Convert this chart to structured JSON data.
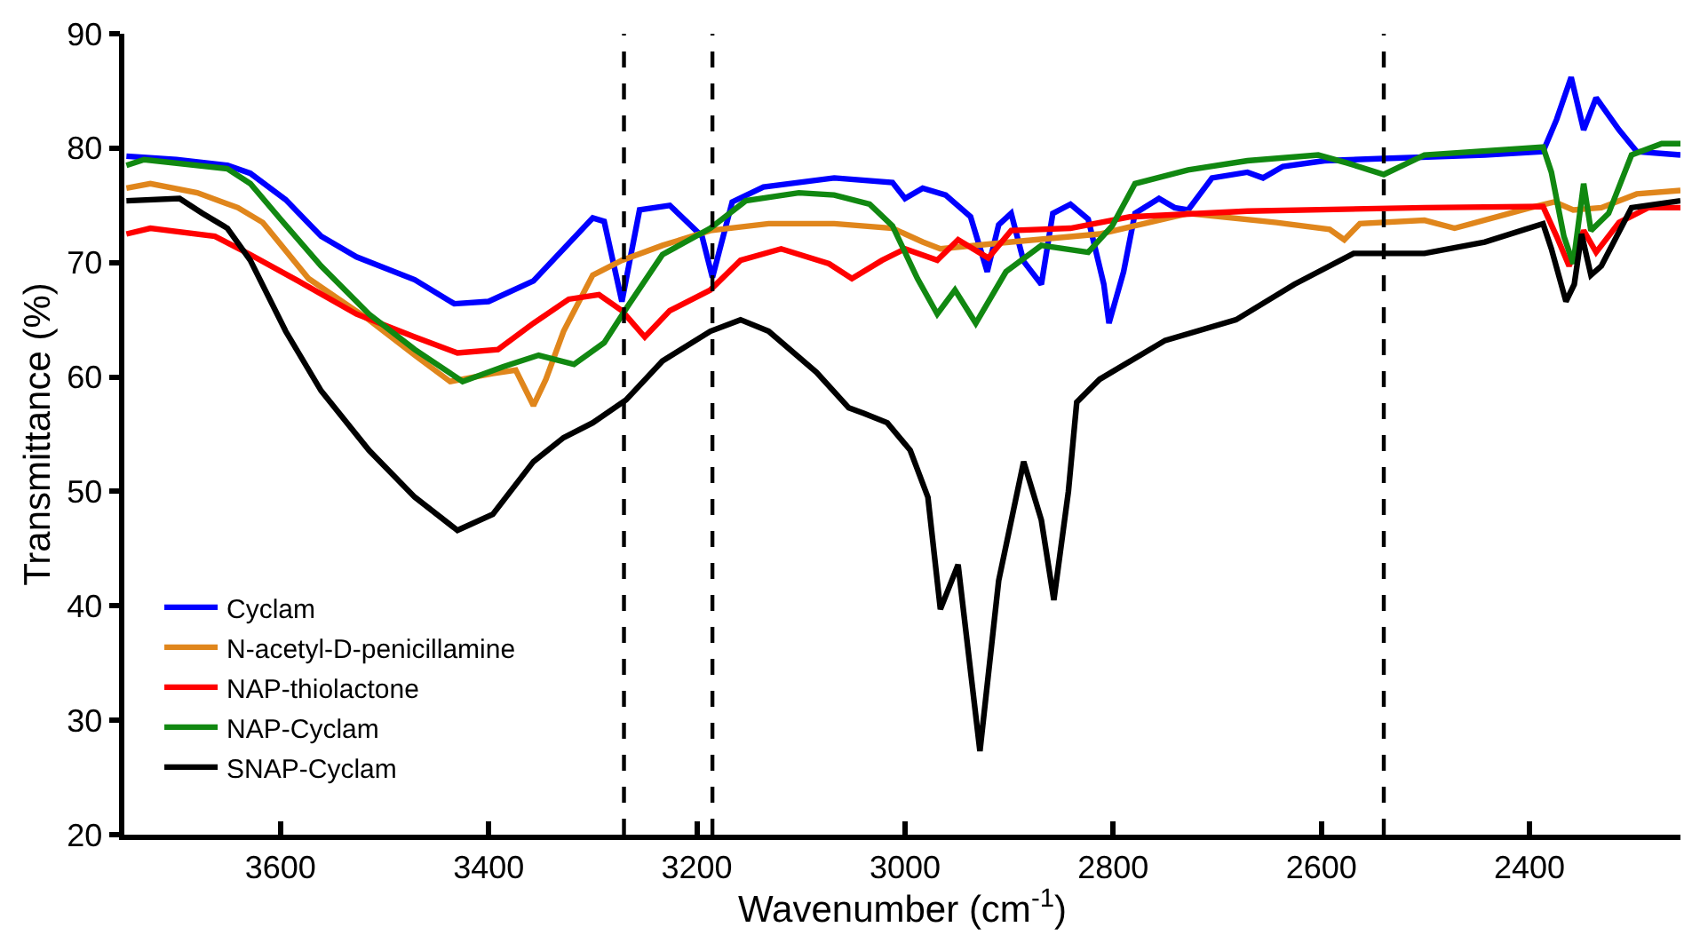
{
  "chart_data": {
    "type": "line",
    "xlabel": "Wavenumber (cm$^{-1}$)",
    "ylabel": "Transmittance (%)",
    "xlim": [
      3750,
      2255
    ],
    "ylim": [
      20,
      90
    ],
    "xticks": [
      3600,
      3400,
      3200,
      3000,
      2800,
      2600,
      2400
    ],
    "yticks": [
      20,
      30,
      40,
      50,
      60,
      70,
      80,
      90
    ],
    "legend": "bottom left",
    "marker": "none",
    "line_style": "solid",
    "ref_lines": [
      {
        "axis": "x",
        "value": 3270,
        "color": "#000000",
        "line_style": "dashed"
      },
      {
        "axis": "x",
        "value": 3185,
        "color": "#000000",
        "line_style": "dashed"
      },
      {
        "axis": "x",
        "value": 2540,
        "color": "#000000",
        "line_style": "dashed"
      }
    ],
    "series": [
      {
        "name": "Cyclam",
        "color": "#0000ff",
        "x": [
          3748,
          3700,
          3651,
          3629,
          3595,
          3561,
          3527,
          3471,
          3433,
          3400,
          3357,
          3300,
          3289,
          3272,
          3255,
          3226,
          3195,
          3185,
          3166,
          3136,
          3068,
          3012,
          3000,
          2983,
          2961,
          2937,
          2921,
          2910,
          2898,
          2886,
          2869,
          2858,
          2841,
          2824,
          2809,
          2804,
          2790,
          2779,
          2756,
          2741,
          2728,
          2705,
          2671,
          2656,
          2637,
          2597,
          2540,
          2443,
          2387,
          2374,
          2360,
          2348,
          2336,
          2314,
          2297,
          2255
        ],
        "values": [
          79.3,
          79,
          78.5,
          77.8,
          75.5,
          72.3,
          70.5,
          68.5,
          66.4,
          66.6,
          68.4,
          73.9,
          73.6,
          66.6,
          74.6,
          75,
          72.3,
          68.7,
          75.3,
          76.6,
          77.4,
          77.0,
          75.6,
          76.5,
          75.9,
          74.0,
          69.2,
          73.3,
          74.3,
          70.1,
          68.1,
          74.3,
          75.1,
          73.8,
          68.1,
          64.7,
          69.2,
          74.3,
          75.6,
          74.8,
          74.6,
          77.4,
          77.9,
          77.4,
          78.4,
          78.9,
          79.1,
          79.4,
          79.7,
          82.5,
          86.2,
          81.6,
          84.4,
          81.6,
          79.7,
          79.4
        ]
      },
      {
        "name": "N-acetyl-D-penicillamine",
        "color": "#e0861c",
        "x": [
          3748,
          3725,
          3680,
          3641,
          3617,
          3573,
          3515,
          3471,
          3437,
          3396,
          3374,
          3357,
          3345,
          3328,
          3300,
          3272,
          3233,
          3187,
          3131,
          3068,
          3012,
          2983,
          2966,
          2898,
          2813,
          2728,
          2643,
          2592,
          2578,
          2563,
          2501,
          2472,
          2399,
          2376,
          2358,
          2331,
          2297,
          2255
        ],
        "values": [
          76.5,
          76.9,
          76.1,
          74.8,
          73.5,
          68.6,
          65.0,
          61.9,
          59.6,
          60.3,
          60.6,
          57.5,
          59.8,
          64.0,
          68.9,
          70.2,
          71.5,
          72.8,
          73.4,
          73.4,
          73.0,
          71.8,
          71.2,
          71.8,
          72.5,
          74.3,
          73.5,
          72.9,
          72.0,
          73.4,
          73.7,
          73.0,
          74.8,
          75.3,
          74.6,
          74.8,
          76.0,
          76.3
        ]
      },
      {
        "name": "NAP-thiolactone",
        "color": "#ff0000",
        "x": [
          3748,
          3725,
          3663,
          3629,
          3583,
          3527,
          3471,
          3430,
          3391,
          3357,
          3323,
          3294,
          3272,
          3250,
          3226,
          3187,
          3158,
          3119,
          3073,
          3051,
          3022,
          3000,
          2969,
          2949,
          2920,
          2898,
          2841,
          2784,
          2671,
          2501,
          2387,
          2374,
          2362,
          2348,
          2336,
          2314,
          2286,
          2255
        ],
        "values": [
          72.5,
          73.0,
          72.3,
          70.7,
          68.4,
          65.5,
          63.5,
          62.1,
          62.4,
          64.7,
          66.8,
          67.2,
          65.8,
          63.5,
          65.8,
          67.6,
          70.2,
          71.2,
          69.9,
          68.6,
          70.2,
          71.2,
          70.2,
          72.0,
          70.4,
          72.8,
          73.0,
          74.0,
          74.5,
          74.8,
          74.9,
          72.3,
          69.7,
          72.8,
          70.9,
          73.5,
          74.8,
          74.8
        ]
      },
      {
        "name": "NAP-Cyclam",
        "color": "#118811",
        "x": [
          3748,
          3731,
          3651,
          3629,
          3600,
          3561,
          3515,
          3471,
          3425,
          3386,
          3352,
          3318,
          3289,
          3267,
          3233,
          3187,
          3153,
          3102,
          3068,
          3034,
          3012,
          2988,
          2969,
          2952,
          2932,
          2903,
          2869,
          2824,
          2801,
          2779,
          2728,
          2671,
          2603,
          2575,
          2540,
          2501,
          2387,
          2379,
          2367,
          2358,
          2348,
          2341,
          2324,
          2302,
          2273,
          2255
        ],
        "values": [
          78.5,
          79.0,
          78.2,
          76.9,
          73.8,
          69.7,
          65.5,
          62.4,
          59.6,
          60.9,
          61.9,
          61.1,
          63.0,
          66.1,
          70.7,
          73.0,
          75.4,
          76.1,
          75.9,
          75.1,
          73.2,
          68.6,
          65.5,
          67.6,
          64.7,
          69.2,
          71.5,
          70.9,
          73.2,
          76.9,
          78.1,
          78.9,
          79.4,
          78.7,
          77.7,
          79.4,
          80.1,
          77.9,
          72.3,
          69.9,
          76.9,
          72.8,
          74.3,
          79.4,
          80.4,
          80.4
        ]
      },
      {
        "name": "SNAP-Cyclam",
        "color": "#000000",
        "x": [
          3748,
          3697,
          3675,
          3651,
          3629,
          3595,
          3561,
          3515,
          3471,
          3430,
          3396,
          3357,
          3328,
          3300,
          3268,
          3233,
          3187,
          3158,
          3131,
          3085,
          3054,
          3039,
          3017,
          2995,
          2978,
          2966,
          2949,
          2928,
          2910,
          2886,
          2869,
          2857,
          2843,
          2835,
          2813,
          2750,
          2682,
          2626,
          2569,
          2501,
          2443,
          2387,
          2379,
          2365,
          2357,
          2350,
          2341,
          2331,
          2302,
          2255
        ],
        "values": [
          75.4,
          75.6,
          74.3,
          73.0,
          70.2,
          64.0,
          58.8,
          53.6,
          49.5,
          46.6,
          48.0,
          52.6,
          54.7,
          56.0,
          58.0,
          61.4,
          64.0,
          65.0,
          64.0,
          60.4,
          57.3,
          56.8,
          56.0,
          53.6,
          49.5,
          39.7,
          43.6,
          27.3,
          42.2,
          52.6,
          47.5,
          40.5,
          50.0,
          57.8,
          59.8,
          63.2,
          65.0,
          68.1,
          70.8,
          70.8,
          71.8,
          73.4,
          71.2,
          66.6,
          68.1,
          72.5,
          68.9,
          69.7,
          74.8,
          75.4
        ]
      }
    ]
  }
}
